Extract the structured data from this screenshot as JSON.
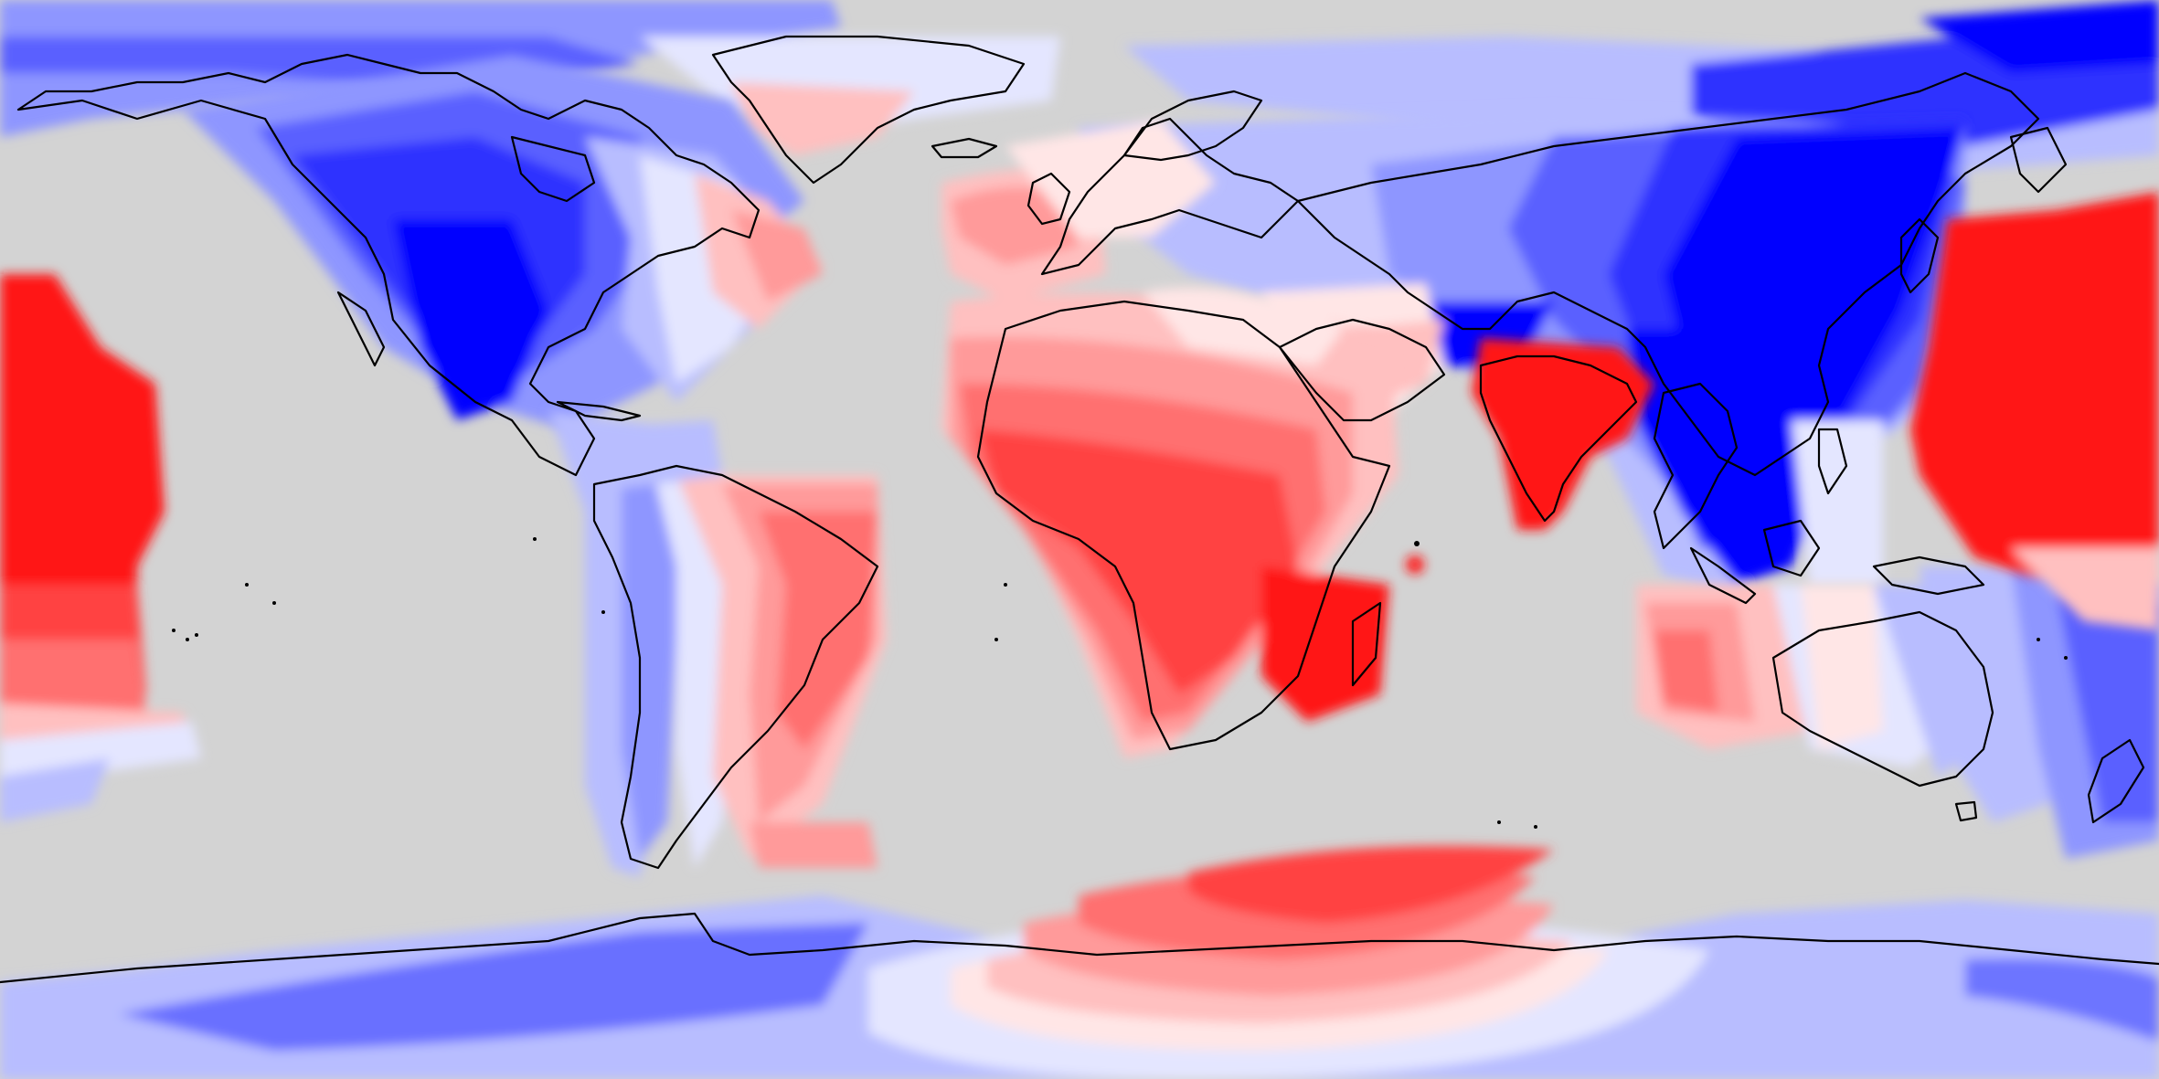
{
  "map": {
    "projection": "equirectangular",
    "background_color": "#d3d3d3",
    "coastline_color": "#000000",
    "palette": {
      "strong_blue": "#0000ff",
      "blue_2": "#2f33ff",
      "blue_3": "#5a61ff",
      "blue_4": "#8e96ff",
      "blue_5": "#b8bdff",
      "near_white_blue": "#e4e6ff",
      "near_white_red": "#ffe6e6",
      "red_5": "#ffc0c0",
      "red_4": "#ff9a9a",
      "red_3": "#ff6f6f",
      "red_2": "#ff4343",
      "strong_red": "#ff1414"
    },
    "legend": null,
    "title": null
  }
}
